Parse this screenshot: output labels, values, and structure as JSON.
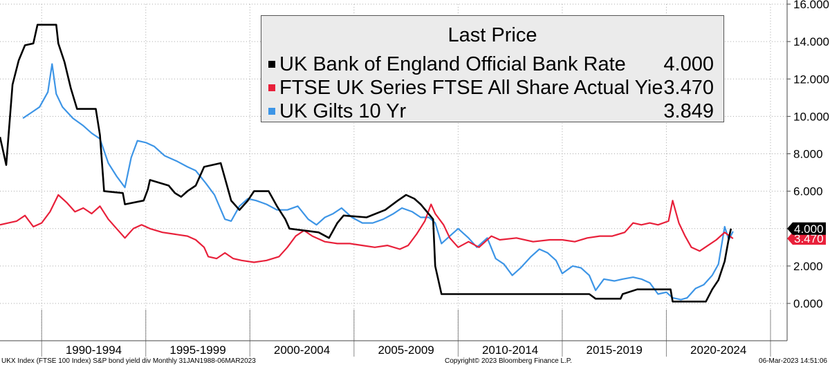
{
  "chart_data": {
    "type": "line",
    "title": "",
    "xlabel": "",
    "ylabel": "",
    "ylim": [
      0,
      16
    ],
    "y_ticks": [
      "0.000",
      "2.000",
      "4.000",
      "6.000",
      "8.000",
      "10.000",
      "12.000",
      "14.000",
      "16.000"
    ],
    "x_period_labels": [
      "1990-1994",
      "1995-1999",
      "2000-2004",
      "2005-2009",
      "2010-2014",
      "2015-2019",
      "2020-2024"
    ],
    "x_range": [
      1988.0,
      2025.2
    ],
    "grid": true,
    "legend": {
      "placement": "top-center",
      "title": "Last Price",
      "entries": [
        {
          "name": "UK Bank of England Official Bank Rate",
          "value": "4.000",
          "color": "#000000"
        },
        {
          "name": "FTSE UK Series FTSE All Share Actual Yield",
          "value": "3.470",
          "color": "#e8203a"
        },
        {
          "name": "UK Gilts 10 Yr",
          "value": "3.849",
          "color": "#3d95e6"
        }
      ]
    },
    "last_value_labels": [
      {
        "text": "4.000",
        "value": 4.0,
        "bg": "#000000",
        "fg": "#ffffff"
      },
      {
        "text": "3.470",
        "value": 3.47,
        "bg": "#e8203a",
        "fg": "#ffffff"
      }
    ],
    "series": [
      {
        "name": "UK Bank of England Official Bank Rate",
        "color": "#000000",
        "points": [
          [
            1988.0,
            8.9
          ],
          [
            1988.3,
            7.4
          ],
          [
            1988.6,
            11.7
          ],
          [
            1988.9,
            13.0
          ],
          [
            1989.2,
            13.8
          ],
          [
            1989.6,
            13.9
          ],
          [
            1989.8,
            14.9
          ],
          [
            1990.7,
            14.9
          ],
          [
            1990.8,
            13.9
          ],
          [
            1991.1,
            12.9
          ],
          [
            1991.4,
            11.5
          ],
          [
            1991.7,
            10.4
          ],
          [
            1992.6,
            10.4
          ],
          [
            1992.8,
            9.0
          ],
          [
            1993.0,
            6.0
          ],
          [
            1993.9,
            5.9
          ],
          [
            1994.0,
            5.3
          ],
          [
            1994.9,
            5.5
          ],
          [
            1995.1,
            6.1
          ],
          [
            1995.2,
            6.6
          ],
          [
            1996.1,
            6.3
          ],
          [
            1996.4,
            5.9
          ],
          [
            1996.7,
            5.7
          ],
          [
            1997.0,
            6.0
          ],
          [
            1997.4,
            6.3
          ],
          [
            1997.8,
            7.3
          ],
          [
            1998.6,
            7.5
          ],
          [
            1998.9,
            6.3
          ],
          [
            1999.1,
            5.5
          ],
          [
            1999.5,
            5.0
          ],
          [
            1999.9,
            5.5
          ],
          [
            2000.2,
            6.0
          ],
          [
            2000.9,
            6.0
          ],
          [
            2001.3,
            5.2
          ],
          [
            2001.7,
            4.5
          ],
          [
            2001.9,
            4.0
          ],
          [
            2003.3,
            3.8
          ],
          [
            2003.8,
            3.5
          ],
          [
            2004.2,
            4.3
          ],
          [
            2004.5,
            4.7
          ],
          [
            2005.6,
            4.6
          ],
          [
            2006.5,
            5.0
          ],
          [
            2007.1,
            5.5
          ],
          [
            2007.5,
            5.8
          ],
          [
            2007.9,
            5.6
          ],
          [
            2008.2,
            5.3
          ],
          [
            2008.8,
            4.5
          ],
          [
            2008.9,
            2.0
          ],
          [
            2009.2,
            0.5
          ],
          [
            2016.3,
            0.5
          ],
          [
            2016.6,
            0.25
          ],
          [
            2017.8,
            0.25
          ],
          [
            2017.9,
            0.5
          ],
          [
            2018.6,
            0.75
          ],
          [
            2020.2,
            0.75
          ],
          [
            2020.3,
            0.1
          ],
          [
            2021.9,
            0.1
          ],
          [
            2022.2,
            0.75
          ],
          [
            2022.5,
            1.25
          ],
          [
            2022.8,
            2.25
          ],
          [
            2023.0,
            3.5
          ],
          [
            2023.1,
            4.0
          ]
        ]
      },
      {
        "name": "FTSE UK Series FTSE All Share Actual Yield",
        "color": "#e8203a",
        "points": [
          [
            1988.0,
            4.2
          ],
          [
            1988.4,
            4.3
          ],
          [
            1988.8,
            4.4
          ],
          [
            1989.2,
            4.7
          ],
          [
            1989.6,
            4.1
          ],
          [
            1990.0,
            4.3
          ],
          [
            1990.4,
            4.9
          ],
          [
            1990.8,
            5.8
          ],
          [
            1991.2,
            5.4
          ],
          [
            1991.6,
            4.9
          ],
          [
            1992.0,
            5.1
          ],
          [
            1992.4,
            4.8
          ],
          [
            1992.8,
            5.2
          ],
          [
            1993.2,
            4.5
          ],
          [
            1993.6,
            4.0
          ],
          [
            1994.0,
            3.5
          ],
          [
            1994.4,
            4.0
          ],
          [
            1994.8,
            4.2
          ],
          [
            1995.2,
            4.0
          ],
          [
            1995.8,
            3.8
          ],
          [
            1996.4,
            3.7
          ],
          [
            1997.0,
            3.6
          ],
          [
            1997.4,
            3.4
          ],
          [
            1997.8,
            3.0
          ],
          [
            1998.0,
            2.5
          ],
          [
            1998.4,
            2.4
          ],
          [
            1998.8,
            2.7
          ],
          [
            1999.2,
            2.4
          ],
          [
            1999.6,
            2.3
          ],
          [
            2000.2,
            2.2
          ],
          [
            2000.8,
            2.3
          ],
          [
            2001.4,
            2.5
          ],
          [
            2001.8,
            3.0
          ],
          [
            2002.2,
            3.6
          ],
          [
            2002.6,
            3.9
          ],
          [
            2003.0,
            3.6
          ],
          [
            2003.6,
            3.3
          ],
          [
            2004.2,
            3.2
          ],
          [
            2004.8,
            3.2
          ],
          [
            2005.4,
            3.1
          ],
          [
            2006.0,
            3.0
          ],
          [
            2006.6,
            3.1
          ],
          [
            2007.2,
            2.9
          ],
          [
            2007.6,
            3.1
          ],
          [
            2008.0,
            3.7
          ],
          [
            2008.4,
            4.4
          ],
          [
            2008.7,
            5.3
          ],
          [
            2008.9,
            4.8
          ],
          [
            2009.3,
            4.2
          ],
          [
            2009.6,
            3.5
          ],
          [
            2010.0,
            3.0
          ],
          [
            2010.5,
            3.3
          ],
          [
            2011.0,
            3.0
          ],
          [
            2011.6,
            3.6
          ],
          [
            2012.0,
            3.4
          ],
          [
            2012.8,
            3.5
          ],
          [
            2013.6,
            3.3
          ],
          [
            2014.4,
            3.4
          ],
          [
            2015.0,
            3.4
          ],
          [
            2015.6,
            3.3
          ],
          [
            2016.2,
            3.5
          ],
          [
            2016.8,
            3.6
          ],
          [
            2017.4,
            3.6
          ],
          [
            2018.0,
            3.8
          ],
          [
            2018.4,
            4.3
          ],
          [
            2018.8,
            4.2
          ],
          [
            2019.2,
            4.3
          ],
          [
            2019.6,
            4.2
          ],
          [
            2020.1,
            4.4
          ],
          [
            2020.3,
            5.5
          ],
          [
            2020.6,
            4.3
          ],
          [
            2020.9,
            3.6
          ],
          [
            2021.2,
            3.0
          ],
          [
            2021.6,
            2.8
          ],
          [
            2022.0,
            3.1
          ],
          [
            2022.4,
            3.4
          ],
          [
            2022.8,
            3.8
          ],
          [
            2023.2,
            3.47
          ]
        ]
      },
      {
        "name": "UK Gilts 10 Yr",
        "color": "#3d95e6",
        "points": [
          [
            1989.1,
            9.9
          ],
          [
            1989.5,
            10.2
          ],
          [
            1989.9,
            10.5
          ],
          [
            1990.3,
            11.3
          ],
          [
            1990.5,
            12.8
          ],
          [
            1990.7,
            11.2
          ],
          [
            1991.0,
            10.5
          ],
          [
            1991.5,
            9.9
          ],
          [
            1992.0,
            9.5
          ],
          [
            1992.4,
            9.1
          ],
          [
            1992.8,
            8.8
          ],
          [
            1993.2,
            7.5
          ],
          [
            1993.6,
            6.8
          ],
          [
            1994.0,
            6.2
          ],
          [
            1994.3,
            7.8
          ],
          [
            1994.6,
            8.7
          ],
          [
            1995.0,
            8.6
          ],
          [
            1995.4,
            8.4
          ],
          [
            1995.9,
            7.9
          ],
          [
            1996.5,
            7.6
          ],
          [
            1997.0,
            7.3
          ],
          [
            1997.4,
            7.1
          ],
          [
            1997.9,
            6.4
          ],
          [
            1998.3,
            5.8
          ],
          [
            1998.8,
            4.5
          ],
          [
            1999.1,
            4.4
          ],
          [
            1999.5,
            5.2
          ],
          [
            1999.9,
            5.6
          ],
          [
            2000.3,
            5.5
          ],
          [
            2000.8,
            5.3
          ],
          [
            2001.3,
            5.0
          ],
          [
            2001.8,
            5.0
          ],
          [
            2002.3,
            5.2
          ],
          [
            2002.8,
            4.5
          ],
          [
            2003.2,
            4.2
          ],
          [
            2003.6,
            4.6
          ],
          [
            2004.0,
            4.8
          ],
          [
            2004.4,
            5.1
          ],
          [
            2004.9,
            4.6
          ],
          [
            2005.4,
            4.3
          ],
          [
            2005.9,
            4.3
          ],
          [
            2006.4,
            4.5
          ],
          [
            2006.9,
            4.8
          ],
          [
            2007.3,
            5.1
          ],
          [
            2007.8,
            4.9
          ],
          [
            2008.2,
            4.6
          ],
          [
            2008.6,
            4.6
          ],
          [
            2008.9,
            4.3
          ],
          [
            2009.2,
            3.2
          ],
          [
            2009.6,
            3.6
          ],
          [
            2010.0,
            4.0
          ],
          [
            2010.5,
            3.5
          ],
          [
            2010.9,
            3.0
          ],
          [
            2011.4,
            3.5
          ],
          [
            2011.8,
            2.4
          ],
          [
            2012.2,
            2.1
          ],
          [
            2012.6,
            1.5
          ],
          [
            2013.0,
            1.9
          ],
          [
            2013.5,
            2.5
          ],
          [
            2013.9,
            2.9
          ],
          [
            2014.3,
            2.7
          ],
          [
            2014.7,
            2.3
          ],
          [
            2015.0,
            1.6
          ],
          [
            2015.5,
            2.0
          ],
          [
            2015.9,
            1.9
          ],
          [
            2016.3,
            1.5
          ],
          [
            2016.6,
            0.7
          ],
          [
            2017.0,
            1.3
          ],
          [
            2017.5,
            1.2
          ],
          [
            2017.9,
            1.3
          ],
          [
            2018.4,
            1.4
          ],
          [
            2018.8,
            1.3
          ],
          [
            2019.2,
            1.1
          ],
          [
            2019.6,
            0.5
          ],
          [
            2020.0,
            0.6
          ],
          [
            2020.3,
            0.3
          ],
          [
            2020.7,
            0.2
          ],
          [
            2021.0,
            0.3
          ],
          [
            2021.4,
            0.8
          ],
          [
            2021.8,
            1.0
          ],
          [
            2022.2,
            1.5
          ],
          [
            2022.5,
            2.1
          ],
          [
            2022.8,
            4.1
          ],
          [
            2023.0,
            3.4
          ],
          [
            2023.2,
            3.849
          ]
        ]
      }
    ]
  },
  "footer": {
    "left": "UKX Index (FTSE 100 Index) S&P bond yield div  Monthly 31JAN1988-06MAR2023",
    "center": "Copyright© 2023 Bloomberg Finance L.P.",
    "right": "06-Mar-2023 14:51:06"
  }
}
